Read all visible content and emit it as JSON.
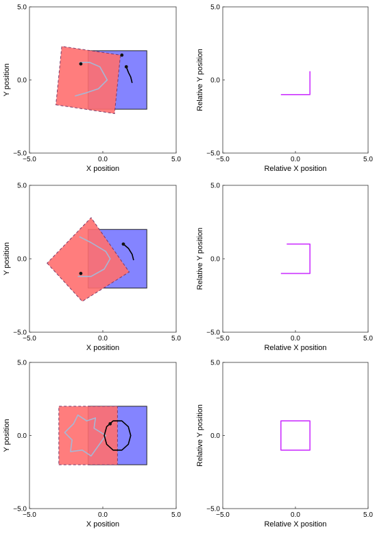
{
  "chart_data": [
    {
      "type": "line",
      "xlabel": "X position",
      "ylabel": "Y position",
      "xlim": [
        -5,
        5
      ],
      "ylim": [
        -5,
        5
      ],
      "xticks": [
        "−5.0",
        "0.0",
        "5.0"
      ],
      "yticks": [
        "−5.0",
        "0.0",
        "5.0"
      ],
      "shapes": [
        {
          "name": "fixed square",
          "fill": "#7777ff",
          "corners": [
            [
              -1,
              -2
            ],
            [
              3,
              -2
            ],
            [
              3,
              2
            ],
            [
              -1,
              2
            ]
          ]
        },
        {
          "name": "moving square",
          "fill": "#ff6f6f",
          "dashed": true,
          "corners": [
            [
              -3.2,
              -1.7
            ],
            [
              0.8,
              -2.3
            ],
            [
              1.2,
              1.7
            ],
            [
              -2.8,
              2.3
            ]
          ]
        }
      ],
      "series": [
        {
          "role": "trace",
          "color": "#a6b8d6",
          "points": [
            [
              -1.9,
              -1.1
            ],
            [
              -1.2,
              -0.9
            ],
            [
              -0.3,
              -0.6
            ],
            [
              0.3,
              0.0
            ],
            [
              -0.2,
              0.9
            ],
            [
              -0.9,
              1.2
            ],
            [
              -1.6,
              1.2
            ]
          ]
        },
        {
          "role": "arc",
          "color": "#000000",
          "points": [
            [
              1.6,
              0.9
            ],
            [
              1.75,
              0.5
            ],
            [
              1.9,
              0.2
            ],
            [
              2.0,
              -0.2
            ]
          ]
        }
      ],
      "markers": [
        {
          "x": -1.5,
          "y": 1.1
        },
        {
          "x": 1.3,
          "y": 1.7
        },
        {
          "x": 1.6,
          "y": 0.9
        }
      ]
    },
    {
      "type": "line",
      "xlabel": "Relative X position",
      "ylabel": "Relative Y position",
      "xlim": [
        -5,
        5
      ],
      "ylim": [
        -5,
        5
      ],
      "xticks": [
        "−5.0",
        "0.0",
        "5.0"
      ],
      "yticks": [
        "−5.0",
        "0.0",
        "5.0"
      ],
      "series": [
        {
          "role": "relative path",
          "color": "#cc33ff",
          "points": [
            [
              -1,
              -1
            ],
            [
              1,
              -1
            ],
            [
              1,
              0.6
            ]
          ]
        }
      ]
    },
    {
      "type": "line",
      "xlabel": "X position",
      "ylabel": "Y position",
      "xlim": [
        -5,
        5
      ],
      "ylim": [
        -5,
        5
      ],
      "xticks": [
        "−5.0",
        "0.0",
        "5.0"
      ],
      "yticks": [
        "−5.0",
        "0.0",
        "5.0"
      ],
      "shapes": [
        {
          "name": "fixed square",
          "fill": "#7777ff",
          "corners": [
            [
              -1,
              -2
            ],
            [
              3,
              -2
            ],
            [
              3,
              2
            ],
            [
              -1,
              2
            ]
          ]
        },
        {
          "name": "moving square",
          "fill": "#ff6f6f",
          "dashed": true,
          "corners": [
            [
              -3.8,
              -0.3
            ],
            [
              -1.4,
              -2.9
            ],
            [
              1.8,
              -0.9
            ],
            [
              -0.8,
              2.8
            ]
          ]
        }
      ],
      "series": [
        {
          "role": "trace",
          "color": "#a6b8d6",
          "points": [
            [
              -1.6,
              1.5
            ],
            [
              -0.8,
              1.1
            ],
            [
              0.2,
              0.5
            ],
            [
              0.5,
              0.0
            ],
            [
              0.1,
              -0.7
            ],
            [
              -0.8,
              -1.2
            ],
            [
              -1.7,
              -1.2
            ]
          ]
        },
        {
          "role": "arc",
          "color": "#000000",
          "points": [
            [
              1.4,
              1.0
            ],
            [
              1.75,
              0.7
            ],
            [
              2.0,
              0.3
            ],
            [
              2.1,
              -0.1
            ]
          ]
        }
      ],
      "markers": [
        {
          "x": -1.5,
          "y": -1.0
        },
        {
          "x": 1.4,
          "y": 1.0
        }
      ]
    },
    {
      "type": "line",
      "xlabel": "Relative X position",
      "ylabel": "Relative Y position",
      "xlim": [
        -5,
        5
      ],
      "ylim": [
        -5,
        5
      ],
      "xticks": [
        "−5.0",
        "0.0",
        "5.0"
      ],
      "yticks": [
        "−5.0",
        "0.0",
        "5.0"
      ],
      "series": [
        {
          "role": "relative path",
          "color": "#cc33ff",
          "points": [
            [
              -1,
              -1
            ],
            [
              1,
              -1
            ],
            [
              1,
              1
            ],
            [
              -0.6,
              1
            ]
          ]
        }
      ]
    },
    {
      "type": "line",
      "xlabel": "X position",
      "ylabel": "Y position",
      "xlim": [
        -5,
        5
      ],
      "ylim": [
        -5,
        5
      ],
      "xticks": [
        "−5.0",
        "0.0",
        "5.0"
      ],
      "yticks": [
        "−5.0",
        "0.0",
        "5.0"
      ],
      "shapes": [
        {
          "name": "fixed square",
          "fill": "#7777ff",
          "corners": [
            [
              -1,
              -2
            ],
            [
              3,
              -2
            ],
            [
              3,
              2
            ],
            [
              -1,
              2
            ]
          ]
        },
        {
          "name": "moving square",
          "fill": "#ff6f6f",
          "dashed": true,
          "corners": [
            [
              -3,
              -2
            ],
            [
              1,
              -2
            ],
            [
              1,
              2
            ],
            [
              -3,
              2
            ]
          ]
        }
      ],
      "series": [
        {
          "role": "trace",
          "color": "#a6b8d6",
          "closed": true,
          "points": [
            [
              0.2,
              0.0
            ],
            [
              -0.6,
              0.5
            ],
            [
              -0.5,
              1.2
            ],
            [
              -1.1,
              1.0
            ],
            [
              -1.7,
              1.4
            ],
            [
              -2.0,
              0.8
            ],
            [
              -2.6,
              0.2
            ],
            [
              -2.1,
              -0.3
            ],
            [
              -2.2,
              -1.1
            ],
            [
              -1.4,
              -1.0
            ],
            [
              -0.8,
              -1.4
            ],
            [
              -0.3,
              -0.7
            ]
          ]
        },
        {
          "role": "circle",
          "color": "#000000",
          "closed": true,
          "points": [
            [
              1.9,
              0.0
            ],
            [
              1.74,
              0.6
            ],
            [
              1.3,
              1.0
            ],
            [
              0.7,
              1.0
            ],
            [
              0.26,
              0.6
            ],
            [
              0.1,
              0.0
            ],
            [
              0.26,
              -0.6
            ],
            [
              0.7,
              -1.0
            ],
            [
              1.3,
              -1.0
            ],
            [
              1.74,
              -0.6
            ]
          ]
        }
      ],
      "markers": [
        {
          "x": 0.5,
          "y": 0.8
        }
      ]
    },
    {
      "type": "line",
      "xlabel": "Relative X position",
      "ylabel": "Relative Y position",
      "xlim": [
        -5,
        5
      ],
      "ylim": [
        -5,
        5
      ],
      "xticks": [
        "−5.0",
        "0.0",
        "5.0"
      ],
      "yticks": [
        "−5.0",
        "0.0",
        "5.0"
      ],
      "series": [
        {
          "role": "relative path",
          "color": "#cc33ff",
          "closed": true,
          "points": [
            [
              -1,
              -1
            ],
            [
              1,
              -1
            ],
            [
              1,
              1
            ],
            [
              -1,
              1
            ]
          ]
        }
      ]
    }
  ]
}
